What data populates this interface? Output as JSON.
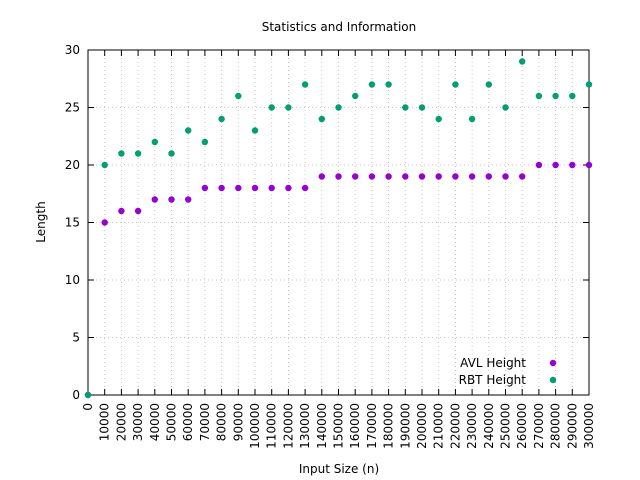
{
  "chart_data": {
    "type": "scatter",
    "title": "Statistics and Information",
    "xlabel": "Input Size (n)",
    "ylabel": "Length",
    "xlim": [
      0,
      300000
    ],
    "ylim": [
      0,
      30
    ],
    "x_ticks": [
      "0",
      "10000",
      "20000",
      "30000",
      "40000",
      "50000",
      "60000",
      "70000",
      "80000",
      "90000",
      "100000",
      "110000",
      "120000",
      "130000",
      "140000",
      "150000",
      "160000",
      "170000",
      "180000",
      "190000",
      "200000",
      "210000",
      "220000",
      "230000",
      "240000",
      "250000",
      "260000",
      "270000",
      "280000",
      "290000",
      "300000"
    ],
    "y_ticks": [
      "0",
      "5",
      "10",
      "15",
      "20",
      "25",
      "30"
    ],
    "grid": true,
    "legend_position": "bottom-right",
    "x": [
      0,
      10000,
      20000,
      30000,
      40000,
      50000,
      60000,
      70000,
      80000,
      90000,
      100000,
      110000,
      120000,
      130000,
      140000,
      150000,
      160000,
      170000,
      180000,
      190000,
      200000,
      210000,
      220000,
      230000,
      240000,
      250000,
      260000,
      270000,
      280000,
      290000,
      300000
    ],
    "series": [
      {
        "name": "AVL Height",
        "color": "#9400d3",
        "values": [
          0,
          15,
          16,
          16,
          17,
          17,
          17,
          18,
          18,
          18,
          18,
          18,
          18,
          18,
          19,
          19,
          19,
          19,
          19,
          19,
          19,
          19,
          19,
          19,
          19,
          19,
          19,
          20,
          20,
          20,
          20
        ]
      },
      {
        "name": "RBT Height",
        "color": "#009e73",
        "values": [
          0,
          20,
          21,
          21,
          22,
          21,
          23,
          22,
          24,
          26,
          23,
          25,
          25,
          27,
          24,
          25,
          26,
          27,
          27,
          25,
          25,
          24,
          27,
          24,
          27,
          25,
          29,
          26,
          26,
          26,
          27
        ]
      }
    ]
  }
}
